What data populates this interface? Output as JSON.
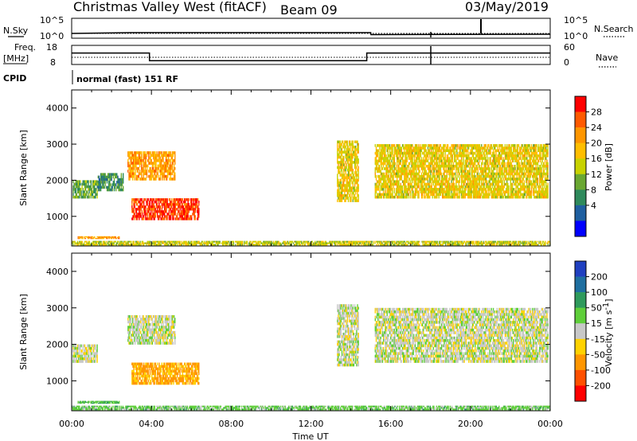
{
  "header": {
    "title": "Christmas Valley West (fitACF)",
    "beam": "Beam 09",
    "date": "03/May/2019"
  },
  "panels": {
    "nsky_label": "N.Sky",
    "nsearch_label": "N.Search",
    "noise_ticks_left": [
      "10^5",
      "10^0"
    ],
    "noise_ticks_right": [
      "10^5",
      "10^0"
    ],
    "freq_label_line1": "Freq.",
    "freq_label_line2": "[MHz]",
    "freq_ticks": [
      "18",
      "8"
    ],
    "nave_label": "Nave",
    "nave_ticks": [
      "60",
      "0"
    ],
    "cpid_label": "CPID",
    "cpid_text": "normal (fast) 151 RF"
  },
  "colorbars": {
    "power": {
      "label": "Power [dB]",
      "ticks": [
        "28",
        "24",
        "20",
        "16",
        "12",
        "8",
        "4"
      ],
      "colors": [
        "#ff0000",
        "#ff5a00",
        "#ff9600",
        "#ffbe00",
        "#c8d200",
        "#6aa832",
        "#2f8a5c",
        "#1f5fa0",
        "#0000ff"
      ]
    },
    "velocity": {
      "label_main": "Velocity [m s",
      "label_sup": "-1",
      "label_end": "]",
      "ticks": [
        "200",
        "100",
        "50",
        "15",
        "-15",
        "-50",
        "-100",
        "-200"
      ],
      "colors": [
        "#2040c0",
        "#1f6fa0",
        "#2f9a5c",
        "#5fcf3a",
        "#c8c8c8",
        "#ffd200",
        "#ff9600",
        "#ff5000",
        "#ff0000"
      ]
    }
  },
  "axes": {
    "ylabel": "Slant Range [km]",
    "xlabel": "Time UT",
    "yticks": [
      "4000",
      "3000",
      "2000",
      "1000"
    ],
    "xticks": [
      "00:00",
      "04:00",
      "08:00",
      "12:00",
      "16:00",
      "20:00",
      "00:00"
    ]
  },
  "chart_data": [
    {
      "type": "line",
      "name": "noise",
      "x_hours_ticks": [
        0,
        4,
        8,
        12,
        16,
        20,
        24
      ],
      "series": [
        {
          "name": "N.Sky",
          "x": [
            0,
            3,
            15,
            15.01,
            24
          ],
          "y": [
            1.2,
            1.4,
            1.4,
            0.9,
            1.0
          ]
        },
        {
          "name": "N.Search",
          "x": [
            0,
            24
          ],
          "y": [
            0.9,
            0.9
          ]
        }
      ]
    },
    {
      "type": "line",
      "name": "frequency",
      "ylim": [
        8,
        18
      ],
      "series": [
        {
          "name": "Freq.",
          "x": [
            0,
            3.9,
            3.9,
            14.8,
            14.8,
            24
          ],
          "y": [
            14,
            14,
            10,
            10,
            14,
            14
          ]
        }
      ]
    },
    {
      "type": "heatmap",
      "name": "power",
      "ylabel": "Slant Range [km]",
      "xlabel": "Time UT",
      "ylim": [
        180,
        4500
      ],
      "xlim_hours": [
        0,
        24
      ],
      "regions": [
        {
          "x0": 0.05,
          "x1": 1.3,
          "y0": 1500,
          "y1": 2000,
          "value": 10
        },
        {
          "x0": 1.3,
          "x1": 2.6,
          "y0": 1700,
          "y1": 2200,
          "value": 8
        },
        {
          "x0": 2.8,
          "x1": 5.2,
          "y0": 2000,
          "y1": 2800,
          "value": 20
        },
        {
          "x0": 3.0,
          "x1": 6.4,
          "y0": 900,
          "y1": 1500,
          "value": 26
        },
        {
          "x0": 13.3,
          "x1": 14.4,
          "y0": 1400,
          "y1": 3100,
          "value": 16
        },
        {
          "x0": 15.2,
          "x1": 23.9,
          "y0": 1500,
          "y1": 3000,
          "value": 16
        },
        {
          "x0": 0.3,
          "x1": 2.4,
          "y0": 380,
          "y1": 450,
          "value": 20
        },
        {
          "x0": 0.0,
          "x1": 24.0,
          "y0": 200,
          "y1": 320,
          "value": 14
        }
      ]
    },
    {
      "type": "heatmap",
      "name": "velocity",
      "ylabel": "Slant Range [km]",
      "xlabel": "Time UT",
      "ylim": [
        180,
        4500
      ],
      "xlim_hours": [
        0,
        24
      ],
      "regions": [
        {
          "x0": 0.05,
          "x1": 1.3,
          "y0": 1500,
          "y1": 2000,
          "value": 0
        },
        {
          "x0": 2.8,
          "x1": 5.2,
          "y0": 2000,
          "y1": 2800,
          "value": 0
        },
        {
          "x0": 3.0,
          "x1": 6.4,
          "y0": 900,
          "y1": 1500,
          "value": -60
        },
        {
          "x0": 13.3,
          "x1": 14.4,
          "y0": 1400,
          "y1": 3100,
          "value": 0
        },
        {
          "x0": 15.2,
          "x1": 23.9,
          "y0": 1500,
          "y1": 3000,
          "value": 0
        },
        {
          "x0": 0.3,
          "x1": 2.4,
          "y0": 380,
          "y1": 450,
          "value": 40
        },
        {
          "x0": 0.0,
          "x1": 24.0,
          "y0": 200,
          "y1": 320,
          "value": 30
        }
      ]
    }
  ]
}
